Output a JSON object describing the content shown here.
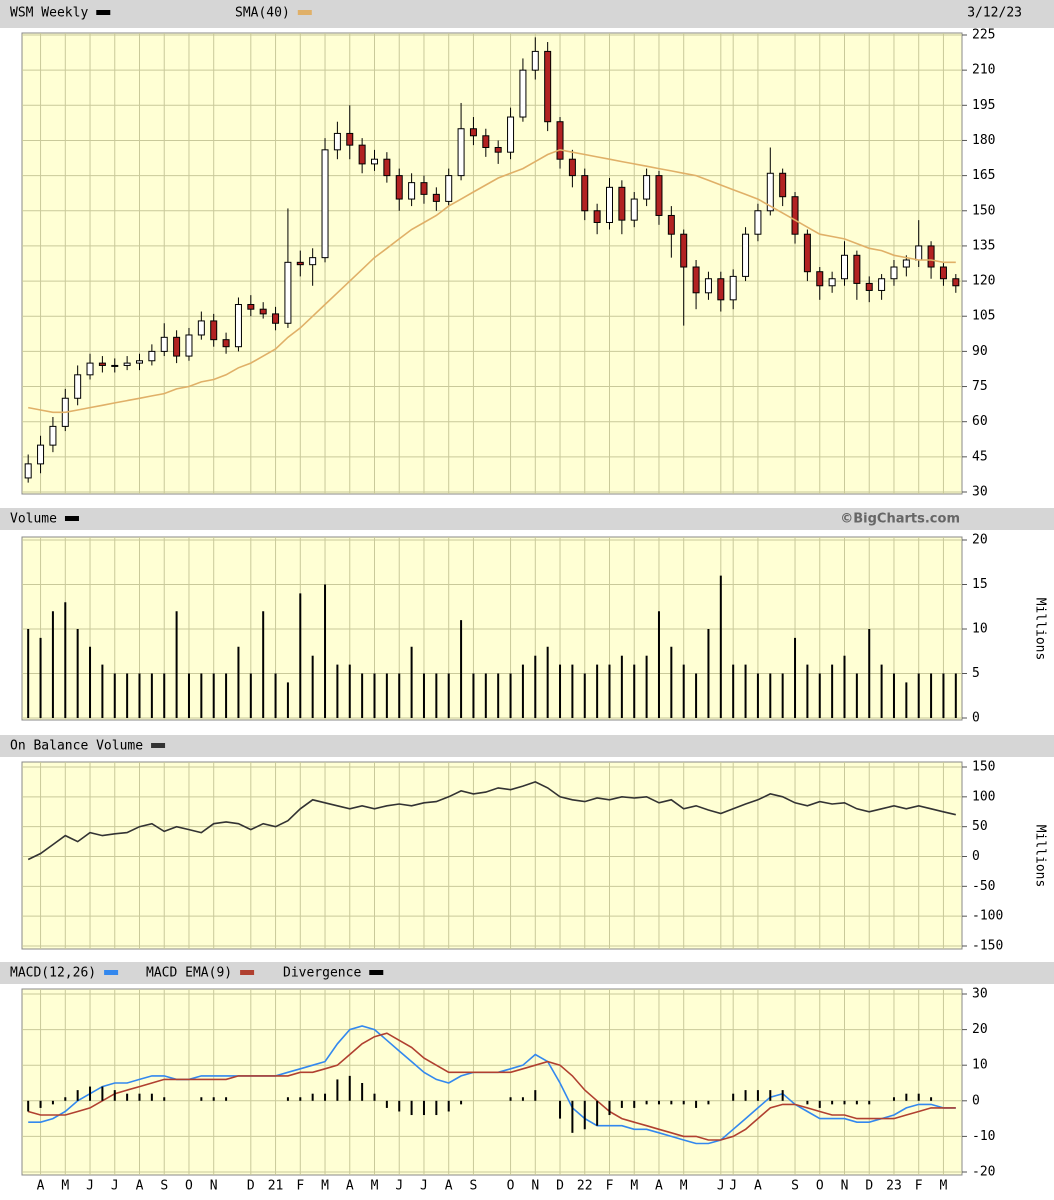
{
  "chart_data": [
    {
      "type": "candlestick",
      "title": "WSM Weekly",
      "color": "#000000",
      "date": "3/12/23",
      "up_color": "#ffffff",
      "down_color": "#b22222",
      "open": [
        36,
        42,
        50,
        58,
        70,
        80,
        85,
        84,
        84,
        85,
        86,
        90,
        96,
        88,
        97,
        103,
        95,
        92,
        110,
        108,
        106,
        102,
        128,
        127,
        130,
        176,
        183,
        178,
        170,
        172,
        165,
        155,
        162,
        157,
        154,
        165,
        185,
        182,
        177,
        175,
        190,
        210,
        218,
        188,
        172,
        165,
        150,
        145,
        160,
        146,
        155,
        165,
        148,
        140,
        126,
        115,
        121,
        112,
        122,
        140,
        150,
        166,
        156,
        140,
        124,
        118,
        121,
        131,
        119,
        116,
        121,
        126,
        129,
        135,
        126,
        121
      ],
      "high": [
        46,
        54,
        62,
        74,
        84,
        89,
        88,
        87,
        88,
        89,
        93,
        102,
        99,
        100,
        107,
        106,
        98,
        113,
        114,
        111,
        109,
        151,
        133,
        134,
        181,
        188,
        195,
        181,
        176,
        175,
        168,
        166,
        165,
        160,
        168,
        196,
        190,
        185,
        180,
        194,
        215,
        224,
        222,
        190,
        176,
        168,
        153,
        164,
        163,
        158,
        168,
        167,
        152,
        142,
        129,
        124,
        124,
        125,
        143,
        153,
        177,
        168,
        158,
        142,
        126,
        124,
        137,
        133,
        122,
        123,
        129,
        131,
        146,
        137,
        128,
        123
      ],
      "low": [
        34,
        38,
        47,
        56,
        67,
        78,
        81,
        81,
        82,
        82,
        84,
        88,
        85,
        86,
        95,
        92,
        89,
        90,
        105,
        104,
        99,
        100,
        122,
        118,
        128,
        172,
        172,
        166,
        167,
        162,
        150,
        152,
        153,
        150,
        152,
        163,
        178,
        173,
        170,
        172,
        188,
        206,
        184,
        168,
        160,
        146,
        140,
        142,
        140,
        143,
        152,
        144,
        130,
        101,
        108,
        112,
        107,
        108,
        120,
        137,
        148,
        152,
        136,
        120,
        112,
        115,
        118,
        112,
        111,
        112,
        118,
        122,
        126,
        121,
        118,
        115
      ],
      "close": [
        42,
        50,
        58,
        70,
        80,
        85,
        84,
        84,
        85,
        86,
        90,
        96,
        88,
        97,
        103,
        95,
        92,
        110,
        108,
        106,
        102,
        128,
        127,
        130,
        176,
        183,
        178,
        170,
        172,
        165,
        155,
        162,
        157,
        154,
        165,
        185,
        182,
        177,
        175,
        190,
        210,
        218,
        188,
        172,
        165,
        150,
        145,
        160,
        146,
        155,
        165,
        148,
        140,
        126,
        115,
        121,
        112,
        122,
        140,
        150,
        166,
        156,
        140,
        124,
        118,
        121,
        131,
        119,
        116,
        121,
        126,
        129,
        135,
        126,
        121,
        118
      ],
      "series": [
        {
          "name": "SMA(40)",
          "color": "#e0b068",
          "values": [
            66,
            65,
            64,
            64,
            65,
            66,
            67,
            68,
            69,
            70,
            71,
            72,
            74,
            75,
            77,
            78,
            80,
            83,
            85,
            88,
            91,
            96,
            100,
            105,
            110,
            115,
            120,
            125,
            130,
            134,
            138,
            142,
            145,
            148,
            152,
            155,
            158,
            161,
            164,
            166,
            168,
            171,
            174,
            176,
            175,
            174,
            173,
            172,
            171,
            170,
            169,
            168,
            167,
            166,
            165,
            163,
            161,
            159,
            157,
            155,
            152,
            149,
            146,
            143,
            140,
            139,
            138,
            136,
            134,
            133,
            131,
            130,
            129,
            129,
            128,
            128
          ]
        }
      ],
      "ylim": [
        30,
        225
      ],
      "yticks": [
        30,
        45,
        60,
        75,
        90,
        105,
        120,
        135,
        150,
        165,
        180,
        195,
        210,
        225
      ],
      "grid": true
    },
    {
      "type": "bar",
      "title": "Volume",
      "color": "#000000",
      "source": "©BigCharts.com",
      "y_label": "Millions",
      "values": [
        10,
        9,
        12,
        13,
        10,
        8,
        6,
        5,
        5,
        5,
        5,
        5,
        12,
        5,
        5,
        5,
        5,
        8,
        5,
        12,
        5,
        4,
        14,
        7,
        15,
        6,
        6,
        5,
        5,
        5,
        5,
        8,
        5,
        5,
        5,
        11,
        5,
        5,
        5,
        5,
        6,
        7,
        8,
        6,
        6,
        5,
        6,
        6,
        7,
        6,
        7,
        12,
        8,
        6,
        5,
        10,
        16,
        6,
        6,
        5,
        5,
        5,
        9,
        6,
        5,
        6,
        7,
        5,
        10,
        6,
        5,
        4,
        5,
        5,
        5,
        5
      ],
      "ylim": [
        0,
        20
      ],
      "yticks": [
        0,
        5,
        10,
        15,
        20
      ],
      "grid": true
    },
    {
      "type": "line",
      "y_label": "Millions",
      "series": [
        {
          "name": "On Balance Volume",
          "color": "#333333",
          "values": [
            -5,
            5,
            20,
            35,
            25,
            40,
            35,
            38,
            40,
            50,
            55,
            42,
            50,
            45,
            40,
            55,
            58,
            55,
            45,
            55,
            50,
            60,
            80,
            95,
            90,
            85,
            80,
            85,
            80,
            85,
            88,
            85,
            90,
            92,
            100,
            110,
            105,
            108,
            115,
            112,
            118,
            125,
            115,
            100,
            95,
            92,
            98,
            95,
            100,
            98,
            100,
            90,
            95,
            80,
            85,
            78,
            72,
            80,
            88,
            95,
            105,
            100,
            90,
            85,
            92,
            88,
            90,
            80,
            75,
            80,
            85,
            80,
            85,
            80,
            75,
            70
          ]
        }
      ],
      "ylim": [
        -150,
        150
      ],
      "yticks": [
        -150,
        -100,
        -50,
        0,
        50,
        100,
        150
      ],
      "grid": true
    },
    {
      "type": "line",
      "categories": [
        null,
        "A",
        null,
        "M",
        null,
        "J",
        null,
        "J",
        null,
        "A",
        null,
        "S",
        null,
        "O",
        null,
        "N",
        null,
        null,
        "D",
        null,
        "21",
        null,
        "F",
        null,
        "M",
        null,
        "A",
        null,
        "M",
        null,
        "J",
        null,
        "J",
        null,
        "A",
        null,
        "S",
        null,
        null,
        "O",
        null,
        "N",
        null,
        "D",
        null,
        "22",
        null,
        "F",
        null,
        "M",
        null,
        "A",
        null,
        "M",
        null,
        null,
        "J",
        "J",
        null,
        "A",
        null,
        null,
        "S",
        null,
        "O",
        null,
        "N",
        null,
        "D",
        null,
        "23",
        null,
        "F",
        null,
        "M",
        null
      ],
      "series": [
        {
          "name": "MACD(12,26)",
          "color": "#3388ee",
          "values": [
            -6,
            -6,
            -5,
            -3,
            0,
            2,
            4,
            5,
            5,
            6,
            7,
            7,
            6,
            6,
            7,
            7,
            7,
            7,
            7,
            7,
            7,
            8,
            9,
            10,
            11,
            16,
            20,
            21,
            20,
            17,
            14,
            11,
            8,
            6,
            5,
            7,
            8,
            8,
            8,
            9,
            10,
            13,
            11,
            5,
            -2,
            -5,
            -7,
            -7,
            -7,
            -8,
            -8,
            -9,
            -10,
            -11,
            -12,
            -12,
            -11,
            -8,
            -5,
            -2,
            1,
            2,
            -1,
            -3,
            -5,
            -5,
            -5,
            -6,
            -6,
            -5,
            -4,
            -2,
            -1,
            -1,
            -2,
            -2
          ]
        },
        {
          "name": "MACD EMA(9)",
          "color": "#b04030",
          "values": [
            -3,
            -4,
            -4,
            -4,
            -3,
            -2,
            0,
            2,
            3,
            4,
            5,
            6,
            6,
            6,
            6,
            6,
            6,
            7,
            7,
            7,
            7,
            7,
            8,
            8,
            9,
            10,
            13,
            16,
            18,
            19,
            17,
            15,
            12,
            10,
            8,
            8,
            8,
            8,
            8,
            8,
            9,
            10,
            11,
            10,
            7,
            3,
            0,
            -3,
            -5,
            -6,
            -7,
            -8,
            -9,
            -10,
            -10,
            -11,
            -11,
            -10,
            -8,
            -5,
            -2,
            -1,
            -1,
            -2,
            -3,
            -4,
            -4,
            -5,
            -5,
            -5,
            -5,
            -4,
            -3,
            -2,
            -2,
            -2
          ]
        },
        {
          "name": "Divergence",
          "color": "#000000",
          "kind": "bar",
          "values": [
            -3,
            -2,
            -1,
            1,
            3,
            4,
            4,
            3,
            2,
            2,
            2,
            1,
            0,
            0,
            1,
            1,
            1,
            0,
            0,
            0,
            0,
            1,
            1,
            2,
            2,
            6,
            7,
            5,
            2,
            -2,
            -3,
            -4,
            -4,
            -4,
            -3,
            -1,
            0,
            0,
            0,
            1,
            1,
            3,
            0,
            -5,
            -9,
            -8,
            -7,
            -4,
            -2,
            -2,
            -1,
            -1,
            -1,
            -1,
            -2,
            -1,
            0,
            2,
            3,
            3,
            3,
            3,
            0,
            -1,
            -2,
            -1,
            -1,
            -1,
            -1,
            0,
            1,
            2,
            2,
            1,
            0,
            0
          ]
        }
      ],
      "ylim": [
        -20,
        30
      ],
      "yticks": [
        -20,
        -10,
        0,
        10,
        20,
        30
      ],
      "grid": true
    }
  ]
}
